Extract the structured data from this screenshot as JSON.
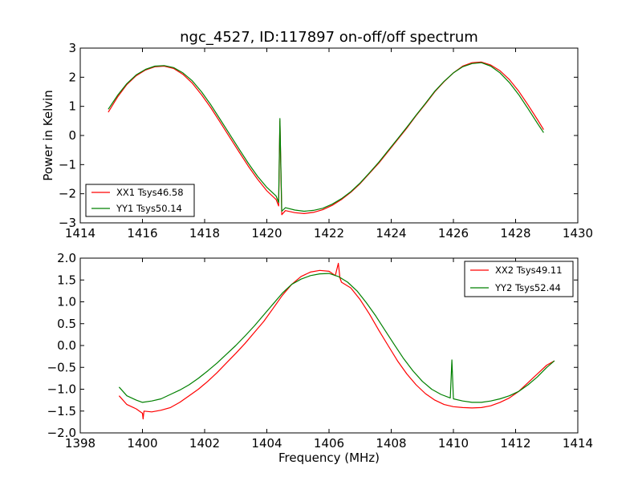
{
  "chart_data": [
    {
      "type": "line",
      "title": "ngc_4527, ID:117897 on-off/off spectrum",
      "xlabel": "",
      "ylabel": "Power in Kelvin",
      "xlim": [
        1414,
        1430
      ],
      "ylim": [
        -3,
        3
      ],
      "xticks": [
        "1414",
        "1416",
        "1418",
        "1420",
        "1422",
        "1424",
        "1426",
        "1428",
        "1430"
      ],
      "yticks": [
        "3",
        "2",
        "1",
        "0",
        "−1",
        "−2",
        "−3"
      ],
      "legend_position": "lower-left",
      "grid": false,
      "series": [
        {
          "name": "XX1 Tsys46.58",
          "color": "#ff0000",
          "x": [
            1414.9,
            1415.2,
            1415.5,
            1415.8,
            1416.1,
            1416.4,
            1416.7,
            1417.0,
            1417.3,
            1417.6,
            1417.9,
            1418.2,
            1418.5,
            1418.8,
            1419.1,
            1419.4,
            1419.7,
            1420.0,
            1420.3,
            1420.38,
            1420.42,
            1420.48,
            1420.6,
            1420.9,
            1421.2,
            1421.5,
            1421.8,
            1422.1,
            1422.4,
            1422.7,
            1423.0,
            1423.3,
            1423.6,
            1423.9,
            1424.2,
            1424.5,
            1424.8,
            1425.1,
            1425.4,
            1425.7,
            1426.0,
            1426.3,
            1426.6,
            1426.9,
            1427.2,
            1427.5,
            1427.8,
            1428.1,
            1428.4,
            1428.7,
            1428.9
          ],
          "values": [
            0.8,
            1.32,
            1.75,
            2.05,
            2.25,
            2.36,
            2.38,
            2.3,
            2.1,
            1.8,
            1.4,
            0.95,
            0.45,
            -0.05,
            -0.55,
            -1.05,
            -1.5,
            -1.9,
            -2.2,
            -2.42,
            0.5,
            -2.72,
            -2.58,
            -2.65,
            -2.68,
            -2.64,
            -2.55,
            -2.4,
            -2.2,
            -1.95,
            -1.65,
            -1.3,
            -0.95,
            -0.55,
            -0.15,
            0.25,
            0.68,
            1.08,
            1.5,
            1.85,
            2.15,
            2.38,
            2.5,
            2.52,
            2.42,
            2.22,
            1.92,
            1.52,
            1.05,
            0.55,
            0.2
          ]
        },
        {
          "name": "YY1 Tsys50.14",
          "color": "#008000",
          "x": [
            1414.9,
            1415.2,
            1415.5,
            1415.8,
            1416.1,
            1416.4,
            1416.7,
            1417.0,
            1417.3,
            1417.6,
            1417.9,
            1418.2,
            1418.5,
            1418.8,
            1419.1,
            1419.4,
            1419.7,
            1420.0,
            1420.3,
            1420.38,
            1420.42,
            1420.48,
            1420.6,
            1420.9,
            1421.2,
            1421.5,
            1421.8,
            1422.1,
            1422.4,
            1422.7,
            1423.0,
            1423.3,
            1423.6,
            1423.9,
            1424.2,
            1424.5,
            1424.8,
            1425.1,
            1425.4,
            1425.7,
            1426.0,
            1426.3,
            1426.6,
            1426.9,
            1427.2,
            1427.5,
            1427.8,
            1428.1,
            1428.4,
            1428.7,
            1428.9
          ],
          "values": [
            0.9,
            1.38,
            1.78,
            2.08,
            2.27,
            2.38,
            2.4,
            2.33,
            2.15,
            1.88,
            1.5,
            1.05,
            0.55,
            0.05,
            -0.45,
            -0.95,
            -1.4,
            -1.78,
            -2.08,
            -2.3,
            0.58,
            -2.6,
            -2.48,
            -2.56,
            -2.6,
            -2.57,
            -2.5,
            -2.36,
            -2.17,
            -1.93,
            -1.63,
            -1.28,
            -0.92,
            -0.52,
            -0.12,
            0.28,
            0.7,
            1.1,
            1.52,
            1.86,
            2.15,
            2.36,
            2.47,
            2.5,
            2.38,
            2.15,
            1.82,
            1.4,
            0.92,
            0.42,
            0.1
          ]
        }
      ]
    },
    {
      "type": "line",
      "title": "",
      "xlabel": "Frequency (MHz)",
      "ylabel": "",
      "xlim": [
        1398,
        1414
      ],
      "ylim": [
        -2.0,
        2.0
      ],
      "xticks": [
        "1398",
        "1400",
        "1402",
        "1404",
        "1406",
        "1408",
        "1410",
        "1412",
        "1414"
      ],
      "yticks": [
        "2.0",
        "1.5",
        "1.0",
        "0.5",
        "0.0",
        "−0.5",
        "−1.0",
        "−1.5",
        "−2.0"
      ],
      "legend_position": "top-right",
      "grid": false,
      "series": [
        {
          "name": "XX2 Tsys49.11",
          "color": "#ff0000",
          "x": [
            1399.25,
            1399.5,
            1399.8,
            1400.0,
            1400.02,
            1400.05,
            1400.3,
            1400.6,
            1400.9,
            1401.2,
            1401.5,
            1401.8,
            1402.1,
            1402.4,
            1402.7,
            1403.0,
            1403.3,
            1403.6,
            1403.9,
            1404.2,
            1404.5,
            1404.8,
            1405.1,
            1405.4,
            1405.7,
            1406.0,
            1406.2,
            1406.3,
            1406.35,
            1406.4,
            1406.7,
            1407.0,
            1407.3,
            1407.6,
            1407.9,
            1408.2,
            1408.5,
            1408.8,
            1409.1,
            1409.4,
            1409.7,
            1410.0,
            1410.3,
            1410.6,
            1410.9,
            1411.2,
            1411.5,
            1411.8,
            1412.1,
            1412.4,
            1412.7,
            1413.0,
            1413.25
          ],
          "values": [
            -1.15,
            -1.35,
            -1.45,
            -1.55,
            -1.68,
            -1.5,
            -1.52,
            -1.48,
            -1.42,
            -1.3,
            -1.15,
            -1.0,
            -0.82,
            -0.62,
            -0.4,
            -0.18,
            0.05,
            0.3,
            0.55,
            0.85,
            1.15,
            1.4,
            1.58,
            1.68,
            1.72,
            1.7,
            1.6,
            1.88,
            1.55,
            1.45,
            1.32,
            1.05,
            0.72,
            0.35,
            0.0,
            -0.35,
            -0.65,
            -0.9,
            -1.1,
            -1.25,
            -1.35,
            -1.4,
            -1.42,
            -1.43,
            -1.42,
            -1.38,
            -1.3,
            -1.2,
            -1.05,
            -0.85,
            -0.65,
            -0.45,
            -0.35
          ]
        },
        {
          "name": "YY2 Tsys52.44",
          "color": "#008000",
          "x": [
            1399.25,
            1399.5,
            1399.8,
            1400.0,
            1400.3,
            1400.6,
            1400.9,
            1401.2,
            1401.5,
            1401.8,
            1402.1,
            1402.4,
            1402.7,
            1403.0,
            1403.3,
            1403.6,
            1403.9,
            1404.2,
            1404.5,
            1404.8,
            1405.1,
            1405.4,
            1405.7,
            1406.0,
            1406.3,
            1406.6,
            1406.9,
            1407.2,
            1407.5,
            1407.8,
            1408.1,
            1408.4,
            1408.7,
            1409.0,
            1409.3,
            1409.6,
            1409.9,
            1409.95,
            1410.0,
            1410.3,
            1410.6,
            1410.9,
            1411.2,
            1411.5,
            1411.8,
            1412.1,
            1412.4,
            1412.7,
            1413.0,
            1413.25
          ],
          "values": [
            -0.95,
            -1.15,
            -1.25,
            -1.3,
            -1.27,
            -1.22,
            -1.12,
            -1.02,
            -0.9,
            -0.75,
            -0.58,
            -0.4,
            -0.2,
            0.0,
            0.22,
            0.45,
            0.7,
            0.95,
            1.2,
            1.4,
            1.52,
            1.6,
            1.64,
            1.65,
            1.58,
            1.45,
            1.25,
            0.98,
            0.68,
            0.35,
            0.02,
            -0.3,
            -0.58,
            -0.82,
            -1.0,
            -1.12,
            -1.2,
            -0.33,
            -1.22,
            -1.27,
            -1.3,
            -1.3,
            -1.27,
            -1.22,
            -1.15,
            -1.05,
            -0.9,
            -0.72,
            -0.5,
            -0.35
          ]
        }
      ]
    }
  ]
}
